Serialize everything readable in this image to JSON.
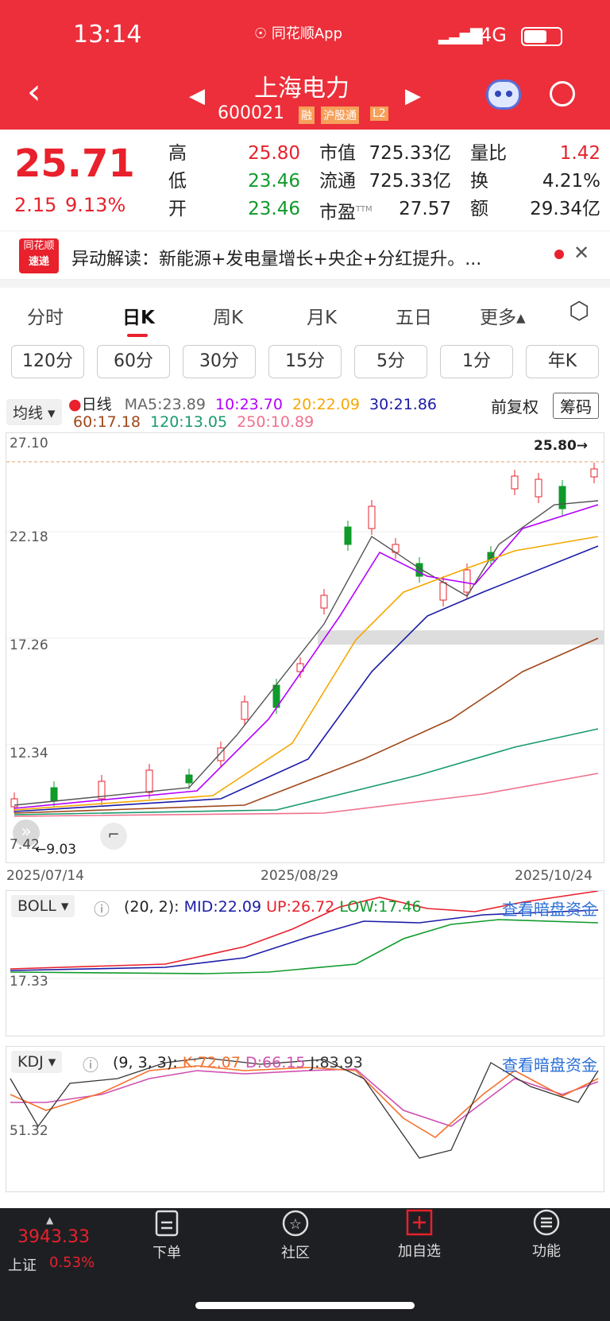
{
  "status": {
    "time": "13:14",
    "app": "同花顺App",
    "net": "4G"
  },
  "header": {
    "name": "上海电力",
    "code": "600021",
    "tags": [
      "融",
      "沪股通",
      "L2"
    ]
  },
  "quote": {
    "price": "25.71",
    "change": "2.15",
    "pct": "9.13%",
    "stats": [
      {
        "label": "高",
        "value": "25.80",
        "color": "#e8212c"
      },
      {
        "label": "低",
        "value": "23.46",
        "color": "#0f9a2a"
      },
      {
        "label": "开",
        "value": "23.46",
        "color": "#0f9a2a"
      }
    ],
    "stats2": [
      {
        "label": "市值",
        "value": "725.33亿"
      },
      {
        "label": "流通",
        "value": "725.33亿"
      },
      {
        "label": "市盈",
        "sup": "TTM",
        "value": "27.57"
      }
    ],
    "stats3": [
      {
        "label": "量比",
        "value": "1.42",
        "color": "#e8212c"
      },
      {
        "label": "换",
        "value": "4.21%",
        "color": "#222"
      },
      {
        "label": "额",
        "value": "29.34亿",
        "color": "#222"
      }
    ]
  },
  "news": {
    "logo1": "同花顺",
    "logo2": "速递",
    "text": "异动解读：新能源+发电量增长+央企+分红提升。..."
  },
  "tabs": [
    "分时",
    "日K",
    "周K",
    "月K",
    "五日",
    "更多▴"
  ],
  "periods": [
    "120分",
    "60分",
    "30分",
    "15分",
    "5分",
    "1分",
    "年K"
  ],
  "ma": {
    "mode": "均线",
    "line": "日线",
    "ma5": "MA5:23.89",
    "ma10": "10:23.70",
    "ma20": "20:22.09",
    "ma30": "30:21.86",
    "ma60": "60:17.18",
    "ma120": "120:13.05",
    "ma250": "250:10.89",
    "fq": "前复权",
    "chips": "筹码"
  },
  "chart_data": {
    "type": "candlestick",
    "y_ticks": [
      "27.10",
      "22.18",
      "17.26",
      "12.34",
      "7.42"
    ],
    "x_ticks": [
      "2025/07/14",
      "2025/08/29",
      "2025/10/24"
    ],
    "high_label": "25.80→",
    "low_label": "←9.03"
  },
  "boll": {
    "name": "BOLL",
    "params": "(20, 2):",
    "mid": "MID:22.09",
    "up": "UP:26.72",
    "low": "LOW:17.46",
    "link": "查看暗盘资金",
    "tick": "17.33"
  },
  "kdj": {
    "name": "KDJ",
    "params": "(9, 3, 3):",
    "k": "K:72.07",
    "d": "D:66.15",
    "j": "J:83.93",
    "link": "查看暗盘资金",
    "tick": "51.32"
  },
  "footer": {
    "index_val": "3943.33",
    "index_name": "上证",
    "index_pct": "0.53%",
    "nav": [
      "下单",
      "社区",
      "加自选",
      "功能"
    ]
  }
}
